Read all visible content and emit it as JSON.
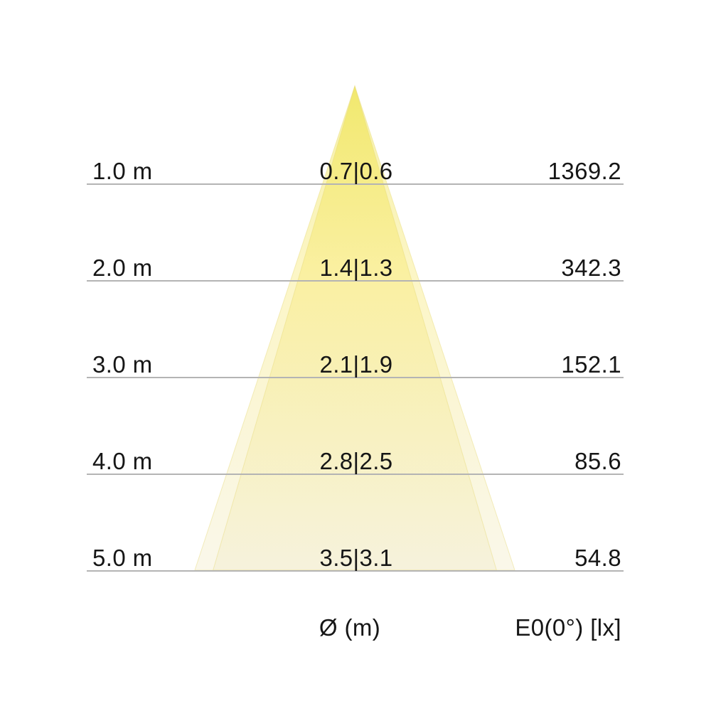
{
  "chart_data": {
    "type": "area",
    "subtype": "light-cone-diagram",
    "description": "Photometric light cone: beam diameter and illuminance vs distance below luminaire",
    "depth_axis": {
      "unit": "m",
      "values": [
        1.0,
        2.0,
        3.0,
        4.0,
        5.0
      ]
    },
    "series": [
      {
        "name": "beam-diameter-outer",
        "unit": "m",
        "values": [
          0.7,
          1.4,
          2.1,
          2.8,
          3.5
        ]
      },
      {
        "name": "beam-diameter-inner",
        "unit": "m",
        "values": [
          0.6,
          1.3,
          1.9,
          2.5,
          3.1
        ]
      },
      {
        "name": "illuminance-E0",
        "unit": "lx",
        "values": [
          1369.2,
          342.3,
          152.1,
          85.6,
          54.8
        ]
      }
    ],
    "rows": [
      {
        "depth_m": 1.0,
        "distance_label": "1.0 m",
        "diameter_label": "0.7|0.6",
        "illuminance_label": "1369.2"
      },
      {
        "depth_m": 2.0,
        "distance_label": "2.0 m",
        "diameter_label": "1.4|1.3",
        "illuminance_label": "342.3"
      },
      {
        "depth_m": 3.0,
        "distance_label": "3.0 m",
        "diameter_label": "2.1|1.9",
        "illuminance_label": "152.1"
      },
      {
        "depth_m": 4.0,
        "distance_label": "4.0 m",
        "diameter_label": "2.8|2.5",
        "illuminance_label": "85.6"
      },
      {
        "depth_m": 5.0,
        "distance_label": "5.0 m",
        "diameter_label": "3.5|3.1",
        "illuminance_label": "54.8"
      }
    ],
    "footer": {
      "diameter_column_label": "Ø (m)",
      "illuminance_column_label": "E0(0°) [lx]"
    },
    "legend": "none",
    "grid": "horizontal-lines-only"
  },
  "colors": {
    "background": "#ffffff",
    "text": "#161616",
    "grid_line": "#b4b4b4",
    "cone_gradient_top": "#e8d90a",
    "cone_gradient_mid": "#f6e55f",
    "cone_gradient_bottom": "#f0e9c4",
    "cone_layer_opacity": "0.36",
    "cone_edge": "#e6d977"
  }
}
